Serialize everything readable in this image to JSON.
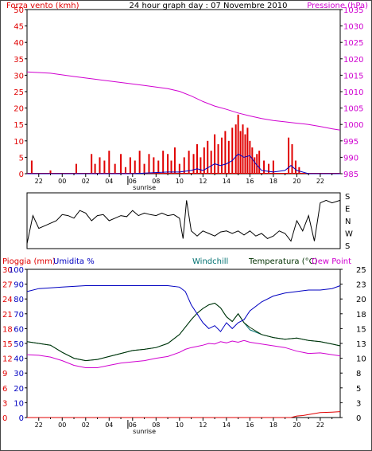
{
  "title": "24 hour graph day : 07 Novembre 2010",
  "colors": {
    "wind": "#e00000",
    "pressure": "#d000d0",
    "dir": "#000000",
    "rain": "#e00000",
    "humidity": "#0000c0",
    "windchill": "#007070",
    "temperature": "#003000",
    "dewpoint": "#d000d0",
    "axis": "#000000"
  },
  "time_ticks": [
    "22",
    "00",
    "02",
    "04",
    "06",
    "08",
    "10",
    "12",
    "14",
    "16",
    "18",
    "20",
    "22"
  ],
  "sunrise_label": "sunrise",
  "chart_data": [
    {
      "type": "bar",
      "name": "wind-pressure",
      "left_axis_label": "Forza vento (kmh)",
      "right_axis_label": "Pressione (hPa)",
      "left_ticks": [
        "0",
        "5",
        "10",
        "15",
        "20",
        "25",
        "30",
        "35",
        "40",
        "45",
        "50"
      ],
      "right_ticks": [
        "985",
        "990",
        "995",
        "1000",
        "1005",
        "1010",
        "1015",
        "1020",
        "1025",
        "1030",
        "1035"
      ],
      "ylim_left": [
        0,
        50
      ],
      "ylim_right": [
        985,
        1035
      ],
      "x_hours_range": [
        -3,
        23.7
      ],
      "series": [
        {
          "name": "Forza vento",
          "kind": "bars",
          "x": [
            -2.6,
            -1,
            1.2,
            2.5,
            2.8,
            3.2,
            3.6,
            4,
            4.5,
            5,
            5.4,
            5.8,
            6.2,
            6.6,
            7,
            7.4,
            7.8,
            8.2,
            8.6,
            9,
            9.3,
            9.6,
            10,
            10.4,
            10.8,
            11.2,
            11.5,
            11.8,
            12.1,
            12.4,
            12.7,
            13,
            13.3,
            13.6,
            13.9,
            14.2,
            14.5,
            14.8,
            15,
            15.2,
            15.4,
            15.6,
            15.8,
            16,
            16.2,
            16.4,
            16.6,
            16.8,
            17.2,
            17.6,
            18,
            19.3,
            19.6,
            19.9,
            20.2
          ],
          "values": [
            4,
            1,
            3,
            6,
            3,
            5,
            4,
            7,
            3,
            6,
            2,
            5,
            4,
            7,
            3,
            6,
            5,
            4,
            7,
            6,
            4,
            8,
            3,
            5,
            7,
            6,
            9,
            5,
            8,
            10,
            7,
            12,
            9,
            11,
            13,
            10,
            14,
            15,
            18,
            13,
            15,
            12,
            14,
            10,
            8,
            5,
            6,
            7,
            4,
            3,
            4,
            11,
            9,
            4,
            2
          ]
        },
        {
          "name": "Raffica/media",
          "kind": "line",
          "x": [
            -3,
            2,
            6,
            9,
            10,
            11,
            11.5,
            12,
            12.5,
            13,
            13.5,
            14,
            14.5,
            15,
            15.5,
            16,
            16.5,
            17,
            18,
            19,
            19.5,
            20,
            21,
            23.7
          ],
          "values": [
            0,
            0,
            0,
            0.5,
            0.5,
            1,
            1.5,
            1,
            2,
            3,
            2.5,
            3,
            4,
            6,
            5,
            5.5,
            3,
            1,
            0.5,
            1,
            2.5,
            1,
            0,
            0
          ]
        },
        {
          "name": "Pressione",
          "kind": "line",
          "axis": "right",
          "x": [
            -3,
            -1,
            1,
            3,
            5,
            7,
            9,
            10,
            11,
            12,
            13,
            14,
            15,
            16,
            17,
            18,
            19,
            20,
            21,
            22,
            23,
            23.7
          ],
          "values": [
            1016,
            1015.6,
            1014.6,
            1013.7,
            1012.8,
            1011.9,
            1010.9,
            1010.1,
            1008.7,
            1007,
            1005.6,
            1004.6,
            1003.5,
            1002.6,
            1001.8,
            1001.2,
            1000.8,
            1000.4,
            1000,
            999.4,
            998.7,
            998.3
          ]
        }
      ]
    },
    {
      "type": "line",
      "name": "wind-direction",
      "right_ticks": [
        "S",
        "E",
        "N",
        "W",
        "S"
      ],
      "x": [
        -3,
        -2.5,
        -2,
        -1.5,
        -1,
        -0.5,
        0,
        0.5,
        1,
        1.5,
        2,
        2.5,
        3,
        3.5,
        4,
        4.5,
        5,
        5.5,
        6,
        6.5,
        7,
        7.5,
        8,
        8.5,
        9,
        9.5,
        10,
        10.3,
        10.6,
        11,
        11.5,
        12,
        12.5,
        13,
        13.5,
        14,
        14.5,
        15,
        15.5,
        16,
        16.5,
        17,
        17.5,
        18,
        18.5,
        19,
        19.5,
        20,
        20.5,
        21,
        21.5,
        22,
        22.5,
        23,
        23.7
      ],
      "values": [
        0.05,
        0.6,
        0.35,
        0.4,
        0.45,
        0.5,
        0.62,
        0.6,
        0.55,
        0.7,
        0.65,
        0.5,
        0.6,
        0.62,
        0.5,
        0.55,
        0.6,
        0.58,
        0.7,
        0.6,
        0.65,
        0.62,
        0.6,
        0.65,
        0.6,
        0.62,
        0.55,
        0.15,
        0.9,
        0.3,
        0.2,
        0.3,
        0.25,
        0.2,
        0.28,
        0.3,
        0.25,
        0.3,
        0.22,
        0.3,
        0.2,
        0.25,
        0.15,
        0.2,
        0.3,
        0.25,
        0.1,
        0.5,
        0.3,
        0.6,
        0.1,
        0.85,
        0.9,
        0.85,
        0.9
      ]
    },
    {
      "type": "line",
      "name": "humidity-temperature",
      "left_axis_label": "Pioggia (mm)",
      "left_axis_label2": "Umidita %",
      "mid_label1": "Windchill",
      "mid_label2": "Temperatura (°C)",
      "right_axis_label": "Dew Point",
      "left_ticks_rain": [
        "0",
        "3",
        "6",
        "9",
        "12",
        "15",
        "18",
        "21",
        "24",
        "27",
        "30"
      ],
      "left_ticks_hum": [
        "0",
        "10",
        "20",
        "30",
        "40",
        "50",
        "60",
        "70",
        "80",
        "90",
        "100"
      ],
      "right_ticks_temp": [
        "0",
        "3",
        "5",
        "8",
        "10",
        "13",
        "15",
        "18",
        "20",
        "23",
        "25"
      ],
      "ylim_hum": [
        0,
        100
      ],
      "ylim_temp": [
        0,
        25
      ],
      "series": [
        {
          "name": "Umidita %",
          "x": [
            -3,
            -2,
            0,
            2,
            4,
            6,
            8,
            9,
            10,
            10.5,
            11,
            11.5,
            12,
            12.5,
            13,
            13.5,
            14,
            14.5,
            15,
            15.5,
            16,
            17,
            18,
            19,
            20,
            21,
            22,
            23,
            23.7
          ],
          "values": [
            85,
            87,
            88,
            89,
            89,
            89,
            89,
            89,
            88,
            85,
            76,
            70,
            64,
            60,
            62,
            58,
            64,
            60,
            64,
            66,
            72,
            78,
            82,
            84,
            85,
            86,
            86,
            87,
            89
          ]
        },
        {
          "name": "Temperatura (°C)",
          "x": [
            -3,
            -1,
            0,
            1,
            2,
            3,
            4,
            5,
            6,
            7,
            8,
            9,
            10,
            11,
            11.5,
            12,
            12.5,
            13,
            13.5,
            14,
            14.5,
            15,
            15.5,
            16,
            17,
            18,
            19,
            20,
            21,
            22,
            23,
            23.7
          ],
          "values": [
            12.8,
            12.2,
            11,
            10,
            9.6,
            9.8,
            10.3,
            10.8,
            11.3,
            11.5,
            11.8,
            12.5,
            14,
            16.5,
            17.6,
            18.4,
            19,
            19.3,
            18.5,
            17,
            16.2,
            17.5,
            16,
            15.2,
            14,
            13.5,
            13.2,
            13.4,
            13,
            12.8,
            12.4,
            12.1
          ]
        },
        {
          "name": "Windchill",
          "x": [
            -3,
            -1,
            0,
            1,
            2,
            3,
            4,
            5,
            6,
            7,
            8,
            9,
            10,
            11,
            11.5,
            12,
            12.5,
            13,
            13.5,
            14,
            14.5,
            15,
            15.5,
            16,
            17,
            18,
            19,
            20,
            21,
            22,
            23,
            23.7
          ],
          "values": [
            12.8,
            12.2,
            11,
            10,
            9.6,
            9.8,
            10.3,
            10.8,
            11.3,
            11.5,
            11.8,
            12.5,
            14,
            16.5,
            17.6,
            18.4,
            19,
            19.3,
            18.5,
            17,
            16.2,
            17.5,
            16,
            14.8,
            14,
            13.5,
            13.2,
            13.4,
            13,
            12.8,
            12.4,
            12.1
          ]
        },
        {
          "name": "Dew Point",
          "x": [
            -3,
            -2,
            -1,
            0,
            1,
            2,
            3,
            4,
            5,
            6,
            7,
            8,
            9,
            10,
            10.5,
            11,
            11.5,
            12,
            12.5,
            13,
            13.5,
            14,
            14.5,
            15,
            15.5,
            16,
            17,
            18,
            19,
            20,
            21,
            22,
            23,
            23.7
          ],
          "values": [
            10.6,
            10.5,
            10.2,
            9.6,
            8.8,
            8.4,
            8.4,
            8.8,
            9.2,
            9.4,
            9.6,
            10,
            10.3,
            11,
            11.5,
            11.8,
            12,
            12.2,
            12.5,
            12.4,
            12.8,
            12.6,
            12.9,
            12.7,
            13,
            12.7,
            12.4,
            12.1,
            11.8,
            11.2,
            10.8,
            10.9,
            10.6,
            10.4
          ]
        },
        {
          "name": "Pioggia (mm)",
          "axis": "rain",
          "x": [
            -3,
            19.5,
            20,
            20.5,
            21,
            22,
            23,
            23.7
          ],
          "values": [
            0,
            0,
            0.3,
            0.4,
            0.6,
            1,
            1.1,
            1.2
          ]
        }
      ]
    }
  ]
}
